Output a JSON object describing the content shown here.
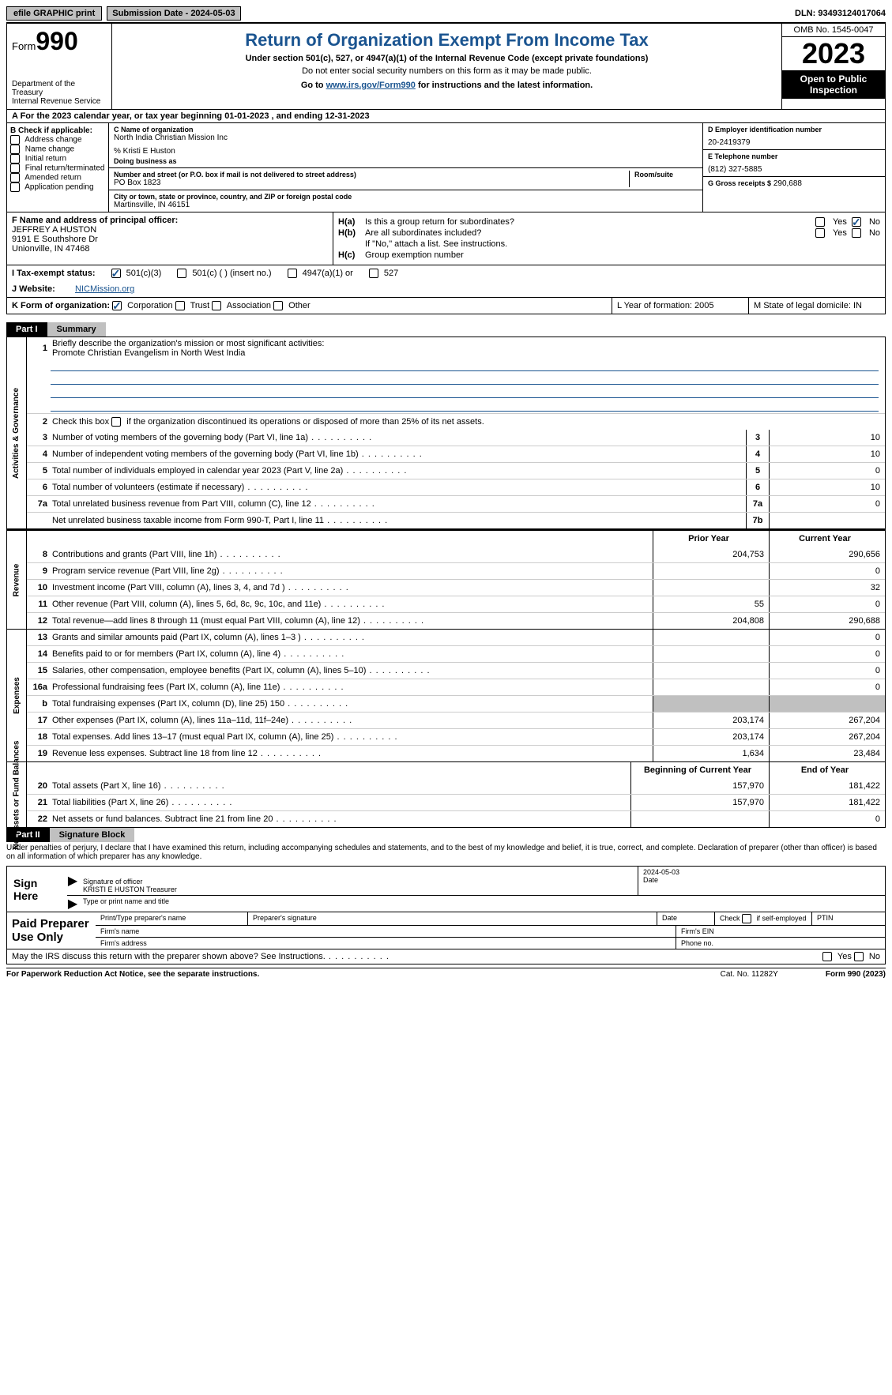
{
  "topbar": {
    "efile": "efile GRAPHIC print",
    "sub_label": "Submission Date - 2024-05-03",
    "dln": "DLN: 93493124017064"
  },
  "header": {
    "form_label": "Form",
    "form_num": "990",
    "dept": "Department of the Treasury\nInternal Revenue Service",
    "title": "Return of Organization Exempt From Income Tax",
    "subtitle": "Under section 501(c), 527, or 4947(a)(1) of the Internal Revenue Code (except private foundations)",
    "note": "Do not enter social security numbers on this form as it may be made public.",
    "goto_pre": "Go to ",
    "goto_link": "www.irs.gov/Form990",
    "goto_post": " for instructions and the latest information.",
    "omb": "OMB No. 1545-0047",
    "year": "2023",
    "open": "Open to Public Inspection"
  },
  "row_a": "A For the 2023 calendar year, or tax year beginning 01-01-2023    , and ending 12-31-2023",
  "box_b": {
    "label": "B Check if applicable:",
    "items": [
      "Address change",
      "Name change",
      "Initial return",
      "Final return/terminated",
      "Amended return",
      "Application pending"
    ]
  },
  "box_c": {
    "name_label": "C Name of organization",
    "name": "North India Christian Mission Inc",
    "care_of": "% Kristi E Huston",
    "dba_label": "Doing business as",
    "street_label": "Number and street (or P.O. box if mail is not delivered to street address)",
    "street": "PO Box 1823",
    "room_label": "Room/suite",
    "city_label": "City or town, state or province, country, and ZIP or foreign postal code",
    "city": "Martinsville, IN   46151"
  },
  "box_d": {
    "label": "D Employer identification number",
    "value": "20-2419379"
  },
  "box_e": {
    "label": "E Telephone number",
    "value": "(812) 327-5885"
  },
  "box_g": {
    "label": "G Gross receipts $",
    "value": "290,688"
  },
  "box_f": {
    "label": "F  Name and address of principal officer:",
    "l1": "JEFFREY A HUSTON",
    "l2": "9191 E Southshore Dr",
    "l3": "Unionville, IN   47468"
  },
  "box_h": {
    "a": "Is this a group return for subordinates?",
    "b": "Are all subordinates included?",
    "note": "If \"No,\" attach a list. See instructions.",
    "c": "Group exemption number"
  },
  "row_i": {
    "label": "I   Tax-exempt status:",
    "o1": "501(c)(3)",
    "o2": "501(c) (  ) (insert no.)",
    "o3": "4947(a)(1) or",
    "o4": "527"
  },
  "row_j": {
    "label": "J   Website:",
    "value": "NICMission.org"
  },
  "row_k": {
    "label": "K Form of organization:",
    "o1": "Corporation",
    "o2": "Trust",
    "o3": "Association",
    "o4": "Other"
  },
  "row_l": "L Year of formation: 2005",
  "row_m": "M State of legal domicile: IN",
  "part1": {
    "tab": "Part I",
    "title": "Summary",
    "l1_label": "Briefly describe the organization's mission or most significant activities:",
    "l1_text": "Promote Christian Evangelism in North West India",
    "l2": "Check this box       if the organization discontinued its operations or disposed of more than 25% of its net assets.",
    "governance_label": "Activities & Governance",
    "revenue_label": "Revenue",
    "expenses_label": "Expenses",
    "net_label": "Net Assets or Fund Balances",
    "lines_gov": [
      {
        "n": "3",
        "t": "Number of voting members of the governing body (Part VI, line 1a)",
        "box": "3",
        "v": "10"
      },
      {
        "n": "4",
        "t": "Number of independent voting members of the governing body (Part VI, line 1b)",
        "box": "4",
        "v": "10"
      },
      {
        "n": "5",
        "t": "Total number of individuals employed in calendar year 2023 (Part V, line 2a)",
        "box": "5",
        "v": "0"
      },
      {
        "n": "6",
        "t": "Total number of volunteers (estimate if necessary)",
        "box": "6",
        "v": "10"
      },
      {
        "n": "7a",
        "t": "Total unrelated business revenue from Part VIII, column (C), line 12",
        "box": "7a",
        "v": "0"
      },
      {
        "n": "",
        "t": "Net unrelated business taxable income from Form 990-T, Part I, line 11",
        "box": "7b",
        "v": ""
      }
    ],
    "col_hdr_prior": "Prior Year",
    "col_hdr_curr": "Current Year",
    "lines_rev": [
      {
        "n": "8",
        "t": "Contributions and grants (Part VIII, line 1h)",
        "p": "204,753",
        "c": "290,656"
      },
      {
        "n": "9",
        "t": "Program service revenue (Part VIII, line 2g)",
        "p": "",
        "c": "0"
      },
      {
        "n": "10",
        "t": "Investment income (Part VIII, column (A), lines 3, 4, and 7d )",
        "p": "",
        "c": "32"
      },
      {
        "n": "11",
        "t": "Other revenue (Part VIII, column (A), lines 5, 6d, 8c, 9c, 10c, and 11e)",
        "p": "55",
        "c": "0"
      },
      {
        "n": "12",
        "t": "Total revenue—add lines 8 through 11 (must equal Part VIII, column (A), line 12)",
        "p": "204,808",
        "c": "290,688"
      }
    ],
    "lines_exp": [
      {
        "n": "13",
        "t": "Grants and similar amounts paid (Part IX, column (A), lines 1–3 )",
        "p": "",
        "c": "0"
      },
      {
        "n": "14",
        "t": "Benefits paid to or for members (Part IX, column (A), line 4)",
        "p": "",
        "c": "0"
      },
      {
        "n": "15",
        "t": "Salaries, other compensation, employee benefits (Part IX, column (A), lines 5–10)",
        "p": "",
        "c": "0"
      },
      {
        "n": "16a",
        "t": "Professional fundraising fees (Part IX, column (A), line 11e)",
        "p": "",
        "c": "0"
      },
      {
        "n": "b",
        "t": "Total fundraising expenses (Part IX, column (D), line 25) 150",
        "p": "shade",
        "c": "shade"
      },
      {
        "n": "17",
        "t": "Other expenses (Part IX, column (A), lines 11a–11d, 11f–24e)",
        "p": "203,174",
        "c": "267,204"
      },
      {
        "n": "18",
        "t": "Total expenses. Add lines 13–17 (must equal Part IX, column (A), line 25)",
        "p": "203,174",
        "c": "267,204"
      },
      {
        "n": "19",
        "t": "Revenue less expenses. Subtract line 18 from line 12",
        "p": "1,634",
        "c": "23,484"
      }
    ],
    "col_hdr_beg": "Beginning of Current Year",
    "col_hdr_end": "End of Year",
    "lines_net": [
      {
        "n": "20",
        "t": "Total assets (Part X, line 16)",
        "p": "157,970",
        "c": "181,422"
      },
      {
        "n": "21",
        "t": "Total liabilities (Part X, line 26)",
        "p": "157,970",
        "c": "181,422"
      },
      {
        "n": "22",
        "t": "Net assets or fund balances. Subtract line 21 from line 20",
        "p": "",
        "c": "0"
      }
    ]
  },
  "part2": {
    "tab": "Part II",
    "title": "Signature Block",
    "perjury": "Under penalties of perjury, I declare that I have examined this return, including accompanying schedules and statements, and to the best of my knowledge and belief, it is true, correct, and complete. Declaration of preparer (other than officer) is based on all information of which preparer has any knowledge.",
    "sign_here": "Sign Here",
    "sig_date": "2024-05-03",
    "sig_label": "Signature of officer",
    "sig_name": "KRISTI E HUSTON  Treasurer",
    "sig_type_label": "Type or print name and title",
    "date_label": "Date",
    "paid": "Paid Preparer Use Only",
    "prep_name": "Print/Type preparer's name",
    "prep_sig": "Preparer's signature",
    "prep_date": "Date",
    "self_emp": "Check        if self-employed",
    "ptin": "PTIN",
    "firm_name": "Firm's name",
    "firm_ein": "Firm's EIN",
    "firm_addr": "Firm's address",
    "phone": "Phone no."
  },
  "footer": {
    "discuss": "May the IRS discuss this return with the preparer shown above? See Instructions.",
    "paperwork": "For Paperwork Reduction Act Notice, see the separate instructions.",
    "cat": "Cat. No. 11282Y",
    "form": "Form 990 (2023)"
  }
}
